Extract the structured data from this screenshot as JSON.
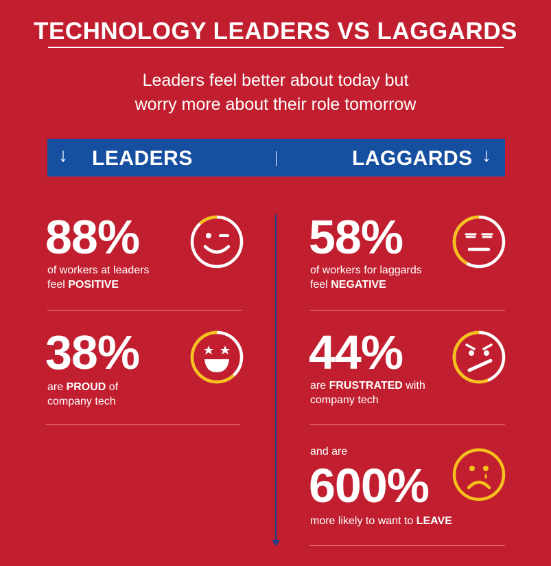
{
  "header": {
    "title": "TECHNOLOGY LEADERS VS LAGGARDS",
    "subtitle_line1": "Leaders feel better about today but",
    "subtitle_line2": "worry more about their role tomorrow"
  },
  "bar": {
    "left_label": "LEADERS",
    "right_label": "LAGGARDS",
    "arrow": "↓"
  },
  "leaders": [
    {
      "percent": "88%",
      "line1": "of workers at leaders",
      "line2_pre": "feel ",
      "line2_bold": "POSITIVE",
      "line2_post": "",
      "icon": "winking-face-icon",
      "ring_fraction": 0.88
    },
    {
      "percent": "38%",
      "line1_pre": "are ",
      "line1_bold": "PROUD",
      "line1_post": " of",
      "line2": "company tech",
      "icon": "star-eyes-face-icon",
      "ring_fraction": 0.38
    }
  ],
  "laggards": [
    {
      "percent": "58%",
      "line1": "of workers for laggards",
      "line2_pre": "feel ",
      "line2_bold": "NEGATIVE",
      "line2_post": "",
      "icon": "annoyed-face-icon",
      "ring_fraction": 0.58
    },
    {
      "percent": "44%",
      "line1_pre": "are ",
      "line1_bold": "FRUSTRATED",
      "line1_post": " with",
      "line2": "company tech",
      "icon": "angry-face-icon",
      "ring_fraction": 0.44
    },
    {
      "pre": "and are",
      "percent": "600%",
      "line1_pre": "more likely to want to ",
      "line1_bold": "LEAVE",
      "icon": "crying-face-icon"
    }
  ],
  "colors": {
    "background": "#c11f2f",
    "bar": "#164f9f",
    "accent": "#f5c21b",
    "line": "#1f3f8a"
  }
}
